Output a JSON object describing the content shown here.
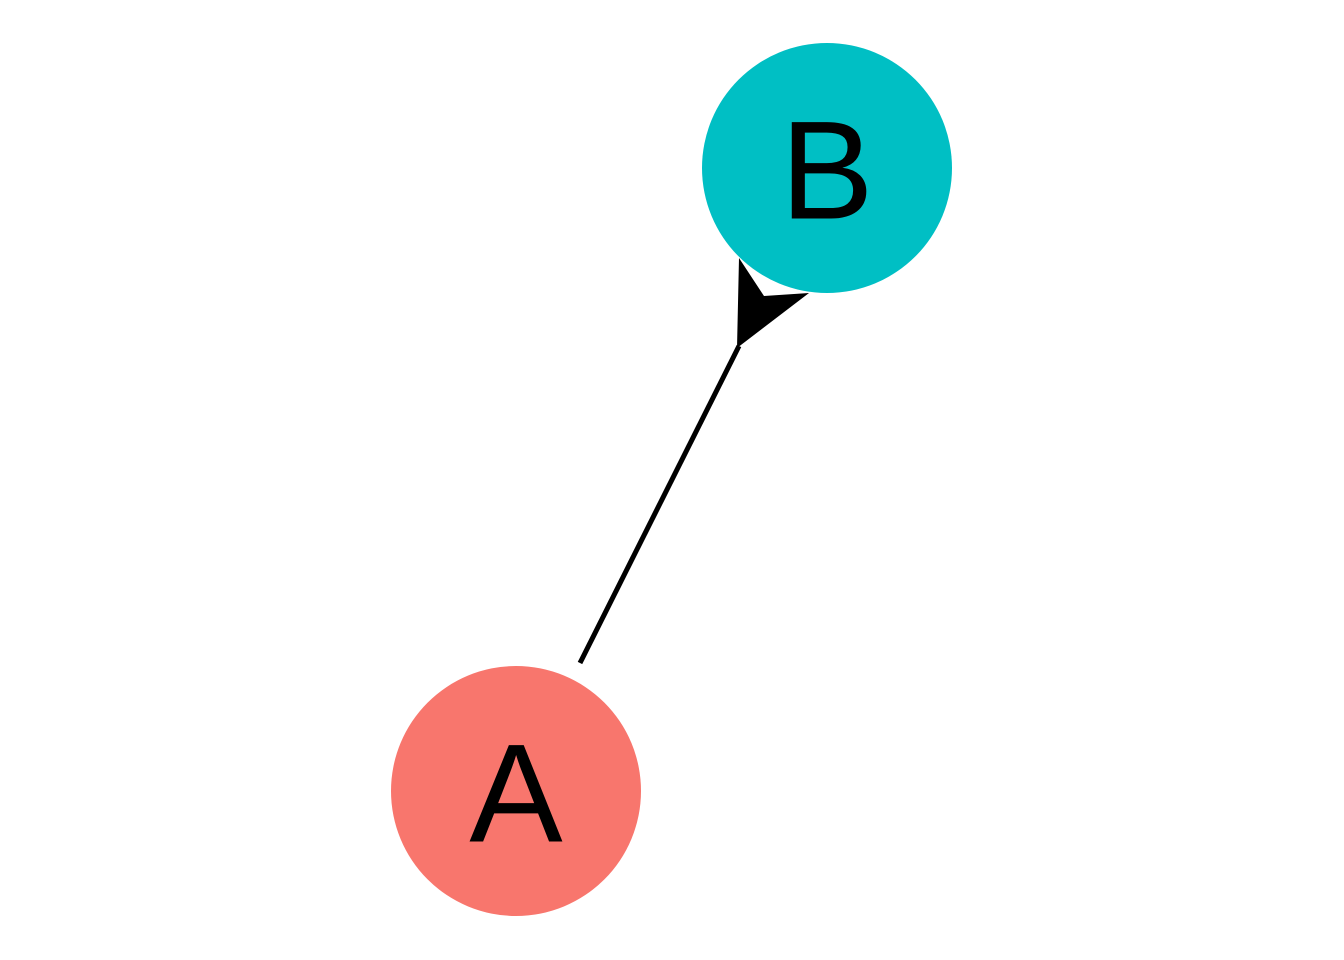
{
  "diagram": {
    "type": "directed-graph",
    "nodes": [
      {
        "id": "A",
        "label": "A",
        "color": "#F8766D"
      },
      {
        "id": "B",
        "label": "B",
        "color": "#00BFC4"
      }
    ],
    "edges": [
      {
        "from": "A",
        "to": "B",
        "directed": true,
        "color": "#000000"
      }
    ]
  }
}
